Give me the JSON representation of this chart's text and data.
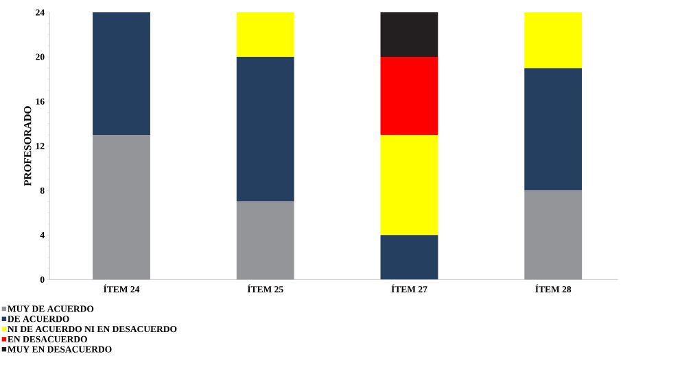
{
  "chart_data": {
    "type": "bar",
    "stacked": true,
    "ylabel": "PROFESORADO",
    "categories": [
      "ÍTEM 24",
      "ÍTEM 25",
      "ÍTEM 27",
      "ÍTEM 28"
    ],
    "series": [
      {
        "name": "MUY DE ACUERDO",
        "color": "#939598",
        "values": [
          13,
          7,
          0,
          8
        ]
      },
      {
        "name": "DE ACUERDO",
        "color": "#243f60",
        "values": [
          11,
          13,
          4,
          11
        ]
      },
      {
        "name": "NI DE ACUERDO NI EN DESACUERDO",
        "color": "#ffff00",
        "values": [
          0,
          4,
          9,
          5
        ]
      },
      {
        "name": "EN DESACUERDO",
        "color": "#ff0000",
        "values": [
          0,
          0,
          7,
          0
        ]
      },
      {
        "name": "MUY EN DESACUERDO",
        "color": "#231f20",
        "values": [
          0,
          0,
          4,
          0
        ]
      }
    ],
    "ylim": [
      0,
      24
    ],
    "yticks": [
      0,
      4,
      8,
      12,
      16,
      20,
      24
    ],
    "grid": false,
    "legend": "bottom"
  }
}
